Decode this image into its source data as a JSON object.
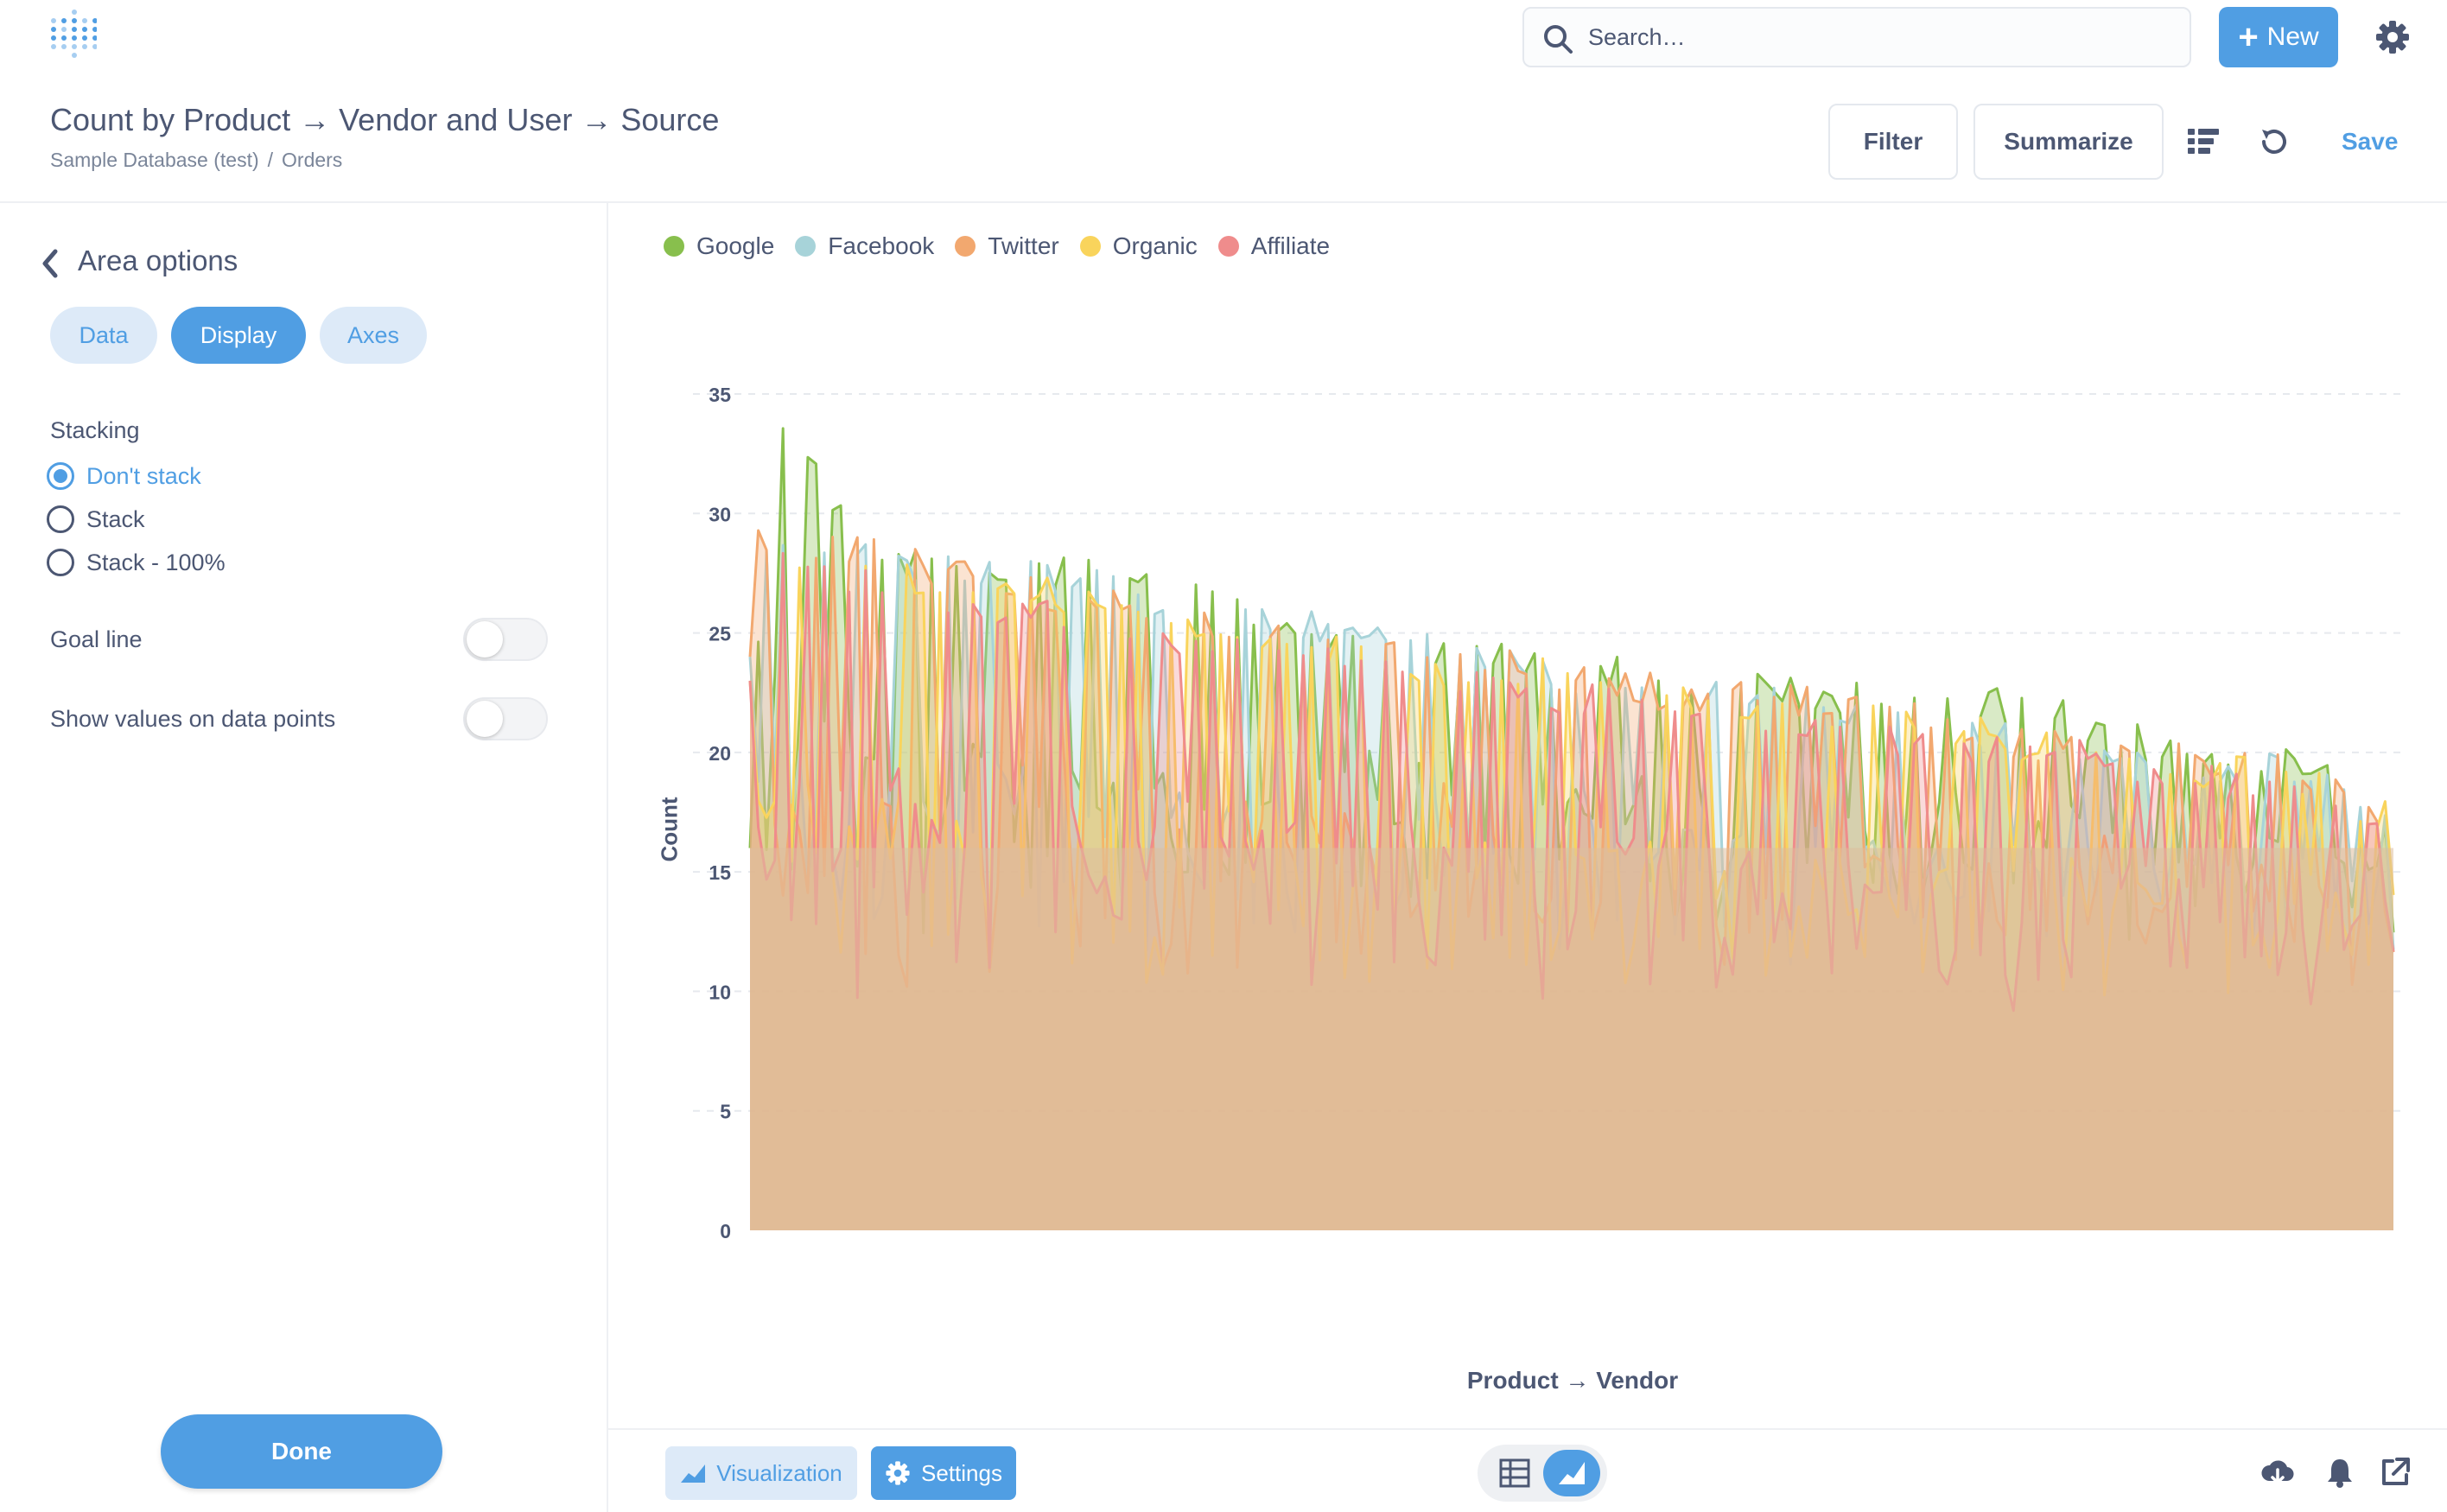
{
  "search": {
    "placeholder": "Search…"
  },
  "topbar": {
    "new_label": "New"
  },
  "header": {
    "title": "Count by Product → Vendor and User → Source",
    "breadcrumb": [
      "Sample Database (test)",
      "Orders"
    ],
    "filter_label": "Filter",
    "summarize_label": "Summarize",
    "save_label": "Save"
  },
  "sidebar": {
    "heading": "Area options",
    "tabs": [
      "Data",
      "Display",
      "Axes"
    ],
    "active_tab": "Display",
    "stacking_label": "Stacking",
    "stacking_options": [
      "Don't stack",
      "Stack",
      "Stack - 100%"
    ],
    "stacking_selected": "Don't stack",
    "goal_line_label": "Goal line",
    "goal_line_on": false,
    "show_values_label": "Show values on data points",
    "show_values_on": false,
    "done_label": "Done"
  },
  "footer": {
    "visualization_label": "Visualization",
    "settings_label": "Settings",
    "active_view": "chart"
  },
  "colors": {
    "accent": "#509ee3",
    "google": "#88bf4d",
    "facebook": "#a7d3d9",
    "twitter": "#f2a86f",
    "organic": "#f9d45c",
    "affiliate": "#ef8c8c"
  },
  "chart_data": {
    "type": "area",
    "stacked": false,
    "xlabel": "Product → Vendor",
    "ylabel": "Count",
    "ylim": [
      0,
      37
    ],
    "yticks": [
      0,
      5,
      10,
      15,
      20,
      25,
      30,
      35
    ],
    "x_tick_labels_shown": false,
    "legend_position": "top-left",
    "grid": "horizontal dashed",
    "categories_count": 200,
    "series": [
      {
        "name": "Google",
        "color": "#88bf4d",
        "envelope": [
          37,
          29,
          28.5,
          28,
          27,
          25.5,
          25,
          24,
          24,
          23,
          23,
          22.5,
          21,
          20.5,
          19
        ],
        "typical_low": 15
      },
      {
        "name": "Facebook",
        "color": "#a7d3d9",
        "envelope": [
          30,
          29,
          28,
          28,
          26,
          26,
          25,
          24,
          23,
          23,
          22,
          21,
          20.5,
          20,
          18
        ],
        "typical_low": 14
      },
      {
        "name": "Twitter",
        "color": "#f2a86f",
        "envelope": [
          30,
          29,
          28,
          27,
          26,
          25,
          25,
          24,
          23,
          23,
          22,
          21,
          20.5,
          20,
          18
        ],
        "typical_low": 13
      },
      {
        "name": "Organic",
        "color": "#f9d45c",
        "envelope": [
          29,
          28,
          28,
          27,
          26,
          25,
          24,
          24,
          23,
          22,
          22,
          21,
          20,
          20,
          18
        ],
        "typical_low": 12
      },
      {
        "name": "Affiliate",
        "color": "#ef8c8c",
        "envelope": [
          29,
          28,
          27,
          26,
          25,
          25,
          24,
          23,
          23,
          22,
          21,
          21,
          20,
          19,
          18
        ],
        "typical_low": 12
      }
    ]
  }
}
